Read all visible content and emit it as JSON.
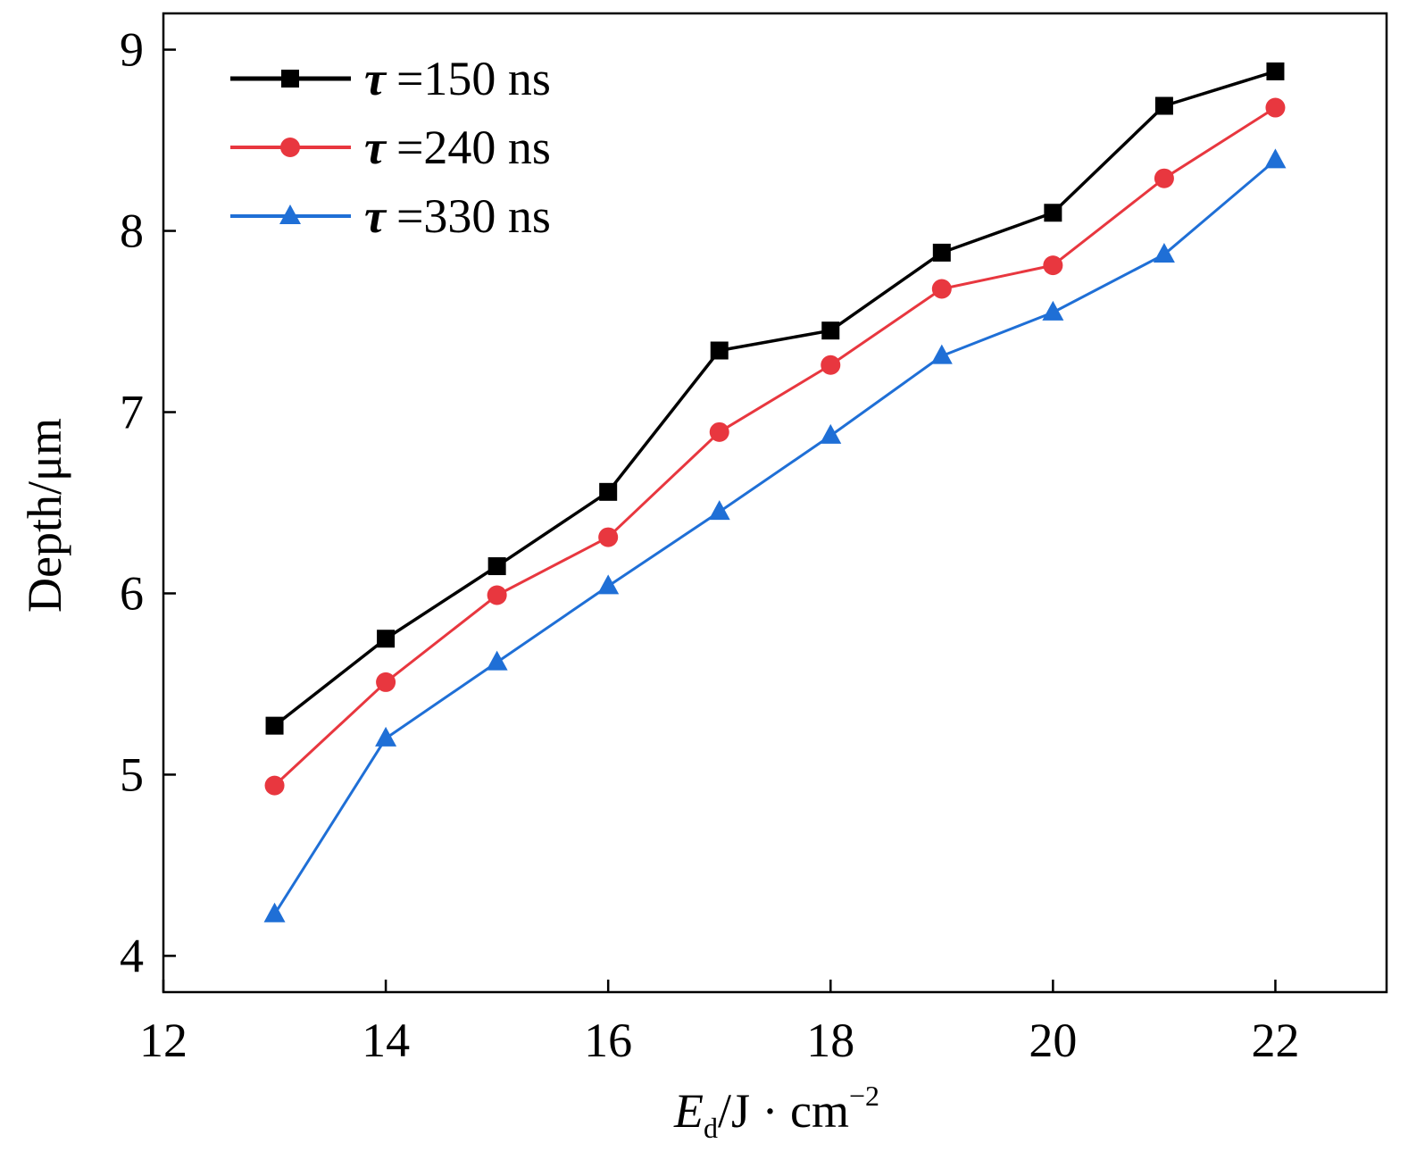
{
  "chart_data": {
    "type": "line",
    "x": [
      13,
      14,
      15,
      16,
      17,
      18,
      19,
      20,
      21,
      22
    ],
    "series": [
      {
        "name": "=150 ns",
        "symbol": "τ",
        "marker": "square",
        "color": "#000000",
        "values": [
          5.27,
          5.75,
          6.15,
          6.56,
          7.34,
          7.45,
          7.88,
          8.1,
          8.69,
          8.88
        ]
      },
      {
        "name": "=240 ns",
        "symbol": "τ",
        "marker": "circle",
        "color": "#e8373f",
        "values": [
          4.94,
          5.51,
          5.99,
          6.31,
          6.89,
          7.26,
          7.68,
          7.81,
          8.29,
          8.68
        ]
      },
      {
        "name": "=330 ns",
        "symbol": "τ",
        "marker": "triangle",
        "color": "#1f6fd6",
        "values": [
          4.23,
          5.2,
          5.62,
          6.04,
          6.45,
          6.87,
          7.31,
          7.55,
          7.87,
          8.39
        ]
      }
    ],
    "xlabel": {
      "main": "E",
      "sub": "d",
      "rest": "/J · cm",
      "sup": "−2"
    },
    "ylabel": "Depth/μm",
    "xlim": [
      12,
      23
    ],
    "ylim": [
      3.8,
      9.2
    ],
    "xticks": [
      12,
      14,
      16,
      18,
      20,
      22
    ],
    "yticks": [
      4,
      5,
      6,
      7,
      8,
      9
    ],
    "grid": false,
    "legend_position": "top-left"
  }
}
